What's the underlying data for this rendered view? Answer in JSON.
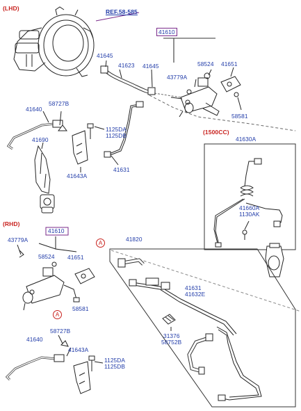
{
  "sections": {
    "lhd": "(LHD)",
    "rhd": "(RHD)",
    "cc1500": "(1500CC)"
  },
  "reference": "REF.58-585",
  "callout_symbol": "A",
  "lhd_labels": {
    "p41610": "41610",
    "p41645a": "41645",
    "p41623": "41623",
    "p41645b": "41645",
    "p58524": "58524",
    "p41651": "41651",
    "p43779a": "43779A",
    "p58581": "58581",
    "p41640": "41640",
    "p58727b": "58727B",
    "p1125da": "1125DA",
    "p1125db": "1125DB",
    "p41690": "41690",
    "p41643a": "41643A",
    "p41631": "41631"
  },
  "cc1500_labels": {
    "p41630a": "41630A",
    "p41660a": "41660A",
    "p1130ak": "1130AK"
  },
  "rhd_labels": {
    "p41610": "41610",
    "p43779a": "43779A",
    "p58524": "58524",
    "p41651": "41651",
    "p58581": "58581",
    "p41820": "41820",
    "p41631": "41631",
    "p41632e": "41632E",
    "p31376": "31376",
    "p58752b": "58752B",
    "p58727b": "58727B",
    "p41640": "41640",
    "p41643a": "41643A",
    "p1125da": "1125DA",
    "p1125db": "1125DB"
  }
}
